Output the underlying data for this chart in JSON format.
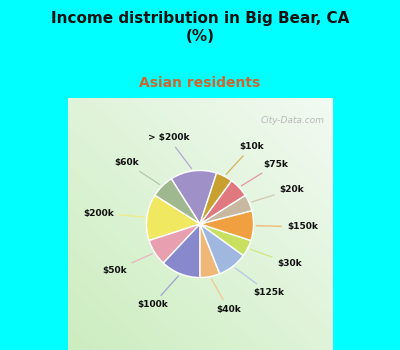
{
  "title": "Income distribution in Big Bear, CA\n(%)",
  "subtitle": "Asian residents",
  "title_color": "#111111",
  "subtitle_color": "#cc6633",
  "bg_color": "#00ffff",
  "labels": [
    "> $200k",
    "$60k",
    "$200k",
    "$50k",
    "$100k",
    "$40k",
    "$125k",
    "$30k",
    "$150k",
    "$20k",
    "$75k",
    "$10k"
  ],
  "sizes": [
    14,
    7,
    14,
    8,
    12,
    6,
    9,
    5,
    9,
    5,
    6,
    5
  ],
  "colors": [
    "#a090c8",
    "#a0b890",
    "#f0e860",
    "#e8a0b0",
    "#8888cc",
    "#f0b878",
    "#a0b8e0",
    "#c8e060",
    "#f0a040",
    "#c8b8a0",
    "#e07880",
    "#c8a030"
  ],
  "startangle": 72,
  "figsize": [
    4.0,
    3.5
  ],
  "dpi": 100
}
